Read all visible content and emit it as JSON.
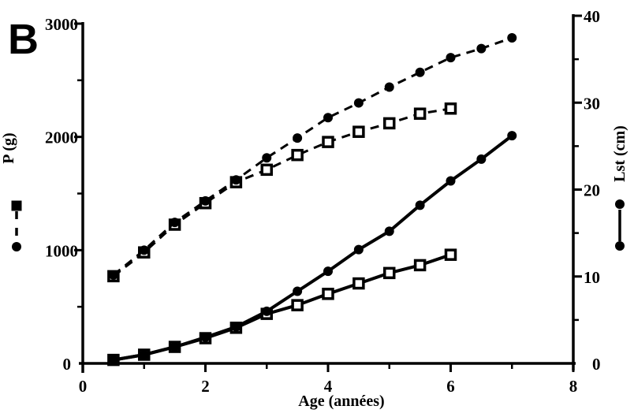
{
  "figure": {
    "panel_label": "B",
    "ink": "#000000",
    "background": "#ffffff"
  },
  "chart_data": {
    "type": "line",
    "title": "",
    "xlabel": "Age (années)",
    "ylabel_left": "P (g)",
    "ylabel_right": "Lst (cm)",
    "xlim": [
      0,
      8
    ],
    "ylim_left": [
      0,
      3000
    ],
    "ylim_right": [
      0,
      40
    ],
    "grid": false,
    "x_ticks_major": [
      0,
      2,
      4,
      6,
      8
    ],
    "x_ticks_minor": [
      1,
      3,
      5,
      7
    ],
    "y_left_ticks_major": [
      0,
      1000,
      2000,
      3000
    ],
    "y_left_ticks_minor": [
      500,
      1500,
      2500
    ],
    "y_right_ticks_major": [
      0,
      10,
      20,
      30,
      40
    ],
    "y_right_ticks_minor": [
      5,
      15,
      25,
      35
    ],
    "series": [
      {
        "name": "P-open-square-dashed",
        "axis": "left",
        "line": "dashed",
        "marker": "open-square",
        "x": [
          0.5,
          1,
          1.5,
          2,
          2.5,
          3,
          3.5,
          4,
          4.5,
          5,
          5.5,
          6
        ],
        "values": [
          770,
          980,
          1225,
          1415,
          1600,
          1710,
          1840,
          1955,
          2045,
          2120,
          2205,
          2250
        ]
      },
      {
        "name": "P-filled-circle-dashed",
        "axis": "left",
        "line": "dashed",
        "marker": "filled-circle",
        "x": [
          0.5,
          1,
          1.5,
          2,
          2.5,
          3,
          3.5,
          4,
          4.5,
          5,
          5.5,
          6,
          6.5,
          7
        ],
        "values": [
          780,
          1000,
          1245,
          1435,
          1620,
          1815,
          1990,
          2170,
          2300,
          2440,
          2570,
          2700,
          2780,
          2875
        ]
      },
      {
        "name": "Lst-open-square-solid",
        "axis": "right",
        "line": "solid",
        "marker": "open-square",
        "x": [
          0.5,
          1,
          1.5,
          2,
          2.5,
          3,
          3.5,
          4,
          4.5,
          5,
          5.5,
          6
        ],
        "values": [
          0.4,
          1.0,
          1.9,
          2.9,
          4.1,
          5.7,
          6.7,
          8.0,
          9.2,
          10.4,
          11.3,
          12.5
        ]
      },
      {
        "name": "Lst-filled-circle-solid",
        "axis": "right",
        "line": "solid",
        "marker": "filled-circle",
        "x": [
          0.5,
          1,
          1.5,
          2,
          2.5,
          3,
          3.5,
          4,
          4.5,
          5,
          5.5,
          6,
          6.5,
          7
        ],
        "values": [
          0.4,
          1.0,
          1.9,
          3.0,
          4.2,
          6.0,
          8.3,
          10.6,
          13.1,
          15.2,
          18.2,
          21.0,
          23.5,
          26.2
        ]
      }
    ],
    "legends": [
      {
        "name": "legend-left-dashed",
        "axis": "left",
        "line": "dashed",
        "top_marker": "filled-square",
        "bottom_marker": "filled-circle"
      },
      {
        "name": "legend-right-solid",
        "axis": "right",
        "line": "solid",
        "top_marker": "filled-circle",
        "bottom_marker": "filled-circle"
      }
    ]
  }
}
